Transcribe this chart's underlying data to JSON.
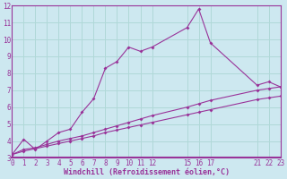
{
  "xlabel": "Windchill (Refroidissement éolien,°C)",
  "bg_color": "#cde8f0",
  "line_color": "#993399",
  "grid_color": "#b0d8d8",
  "series1_x": [
    0,
    1,
    2,
    3,
    4,
    5,
    6,
    7,
    8,
    9,
    10,
    11,
    12,
    15,
    16,
    17,
    21,
    22,
    23
  ],
  "series1_y": [
    3.2,
    4.1,
    3.5,
    4.0,
    4.5,
    4.7,
    5.7,
    6.5,
    8.3,
    8.7,
    9.55,
    9.3,
    9.55,
    10.7,
    11.8,
    9.8,
    7.3,
    7.5,
    7.2
  ],
  "series2_x": [
    0,
    1,
    2,
    3,
    4,
    5,
    6,
    7,
    8,
    9,
    10,
    11,
    12,
    15,
    16,
    17,
    21,
    22,
    23
  ],
  "series2_y": [
    3.2,
    3.5,
    3.6,
    3.8,
    4.0,
    4.15,
    4.3,
    4.5,
    4.7,
    4.9,
    5.1,
    5.3,
    5.5,
    6.0,
    6.2,
    6.4,
    7.0,
    7.1,
    7.2
  ],
  "series3_x": [
    0,
    1,
    2,
    3,
    4,
    5,
    6,
    7,
    8,
    9,
    10,
    11,
    12,
    15,
    16,
    17,
    21,
    22,
    23
  ],
  "series3_y": [
    3.2,
    3.4,
    3.55,
    3.7,
    3.85,
    4.0,
    4.15,
    4.3,
    4.5,
    4.65,
    4.8,
    4.95,
    5.1,
    5.55,
    5.7,
    5.85,
    6.45,
    6.55,
    6.65
  ],
  "xlim": [
    0,
    23
  ],
  "ylim": [
    3,
    12
  ],
  "xticks": [
    0,
    1,
    2,
    3,
    4,
    5,
    6,
    7,
    8,
    9,
    10,
    11,
    12,
    15,
    16,
    17,
    21,
    22,
    23
  ],
  "yticks": [
    3,
    4,
    5,
    6,
    7,
    8,
    9,
    10,
    11,
    12
  ],
  "xlabel_fontsize": 6.0,
  "tick_fontsize": 5.5
}
